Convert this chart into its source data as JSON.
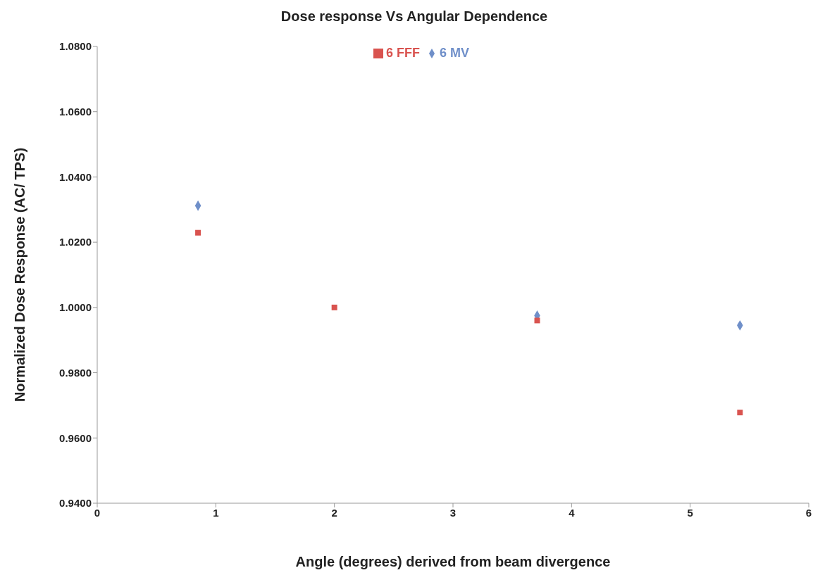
{
  "chart_data": {
    "type": "scatter",
    "title": "Dose response Vs Angular Dependence",
    "xlabel": "Angle (degrees) derived from beam divergence",
    "ylabel": "Normalized Dose Response (AC/ TPS)",
    "series": [
      {
        "name": "6 MV",
        "color": "#6f8fc9",
        "marker": "diamond",
        "x": [
          0.85,
          3.71,
          5.42
        ],
        "values": [
          1.0312,
          0.9975,
          0.9945
        ]
      },
      {
        "name": "6 FFF",
        "color": "#d9534f",
        "marker": "square",
        "x": [
          0.85,
          2.0,
          3.71,
          5.42
        ],
        "values": [
          1.0229,
          1.0,
          0.996,
          0.9678
        ]
      }
    ],
    "xlim": [
      0,
      6
    ],
    "xticks": [
      0,
      1,
      2,
      3,
      4,
      5,
      6
    ],
    "ylim": [
      0.94,
      1.08
    ],
    "yticks": [
      {
        "value": 0.94,
        "label": "0.9400"
      },
      {
        "value": 0.96,
        "label": "0.9600"
      },
      {
        "value": 0.98,
        "label": "0.9800"
      },
      {
        "value": 1.0,
        "label": "1.0000"
      },
      {
        "value": 1.02,
        "label": "1.0200"
      },
      {
        "value": 1.04,
        "label": "1.0400"
      },
      {
        "value": 1.06,
        "label": "1.0600"
      },
      {
        "value": 1.08,
        "label": "1.0800"
      }
    ],
    "grid": false,
    "legend": "top"
  }
}
